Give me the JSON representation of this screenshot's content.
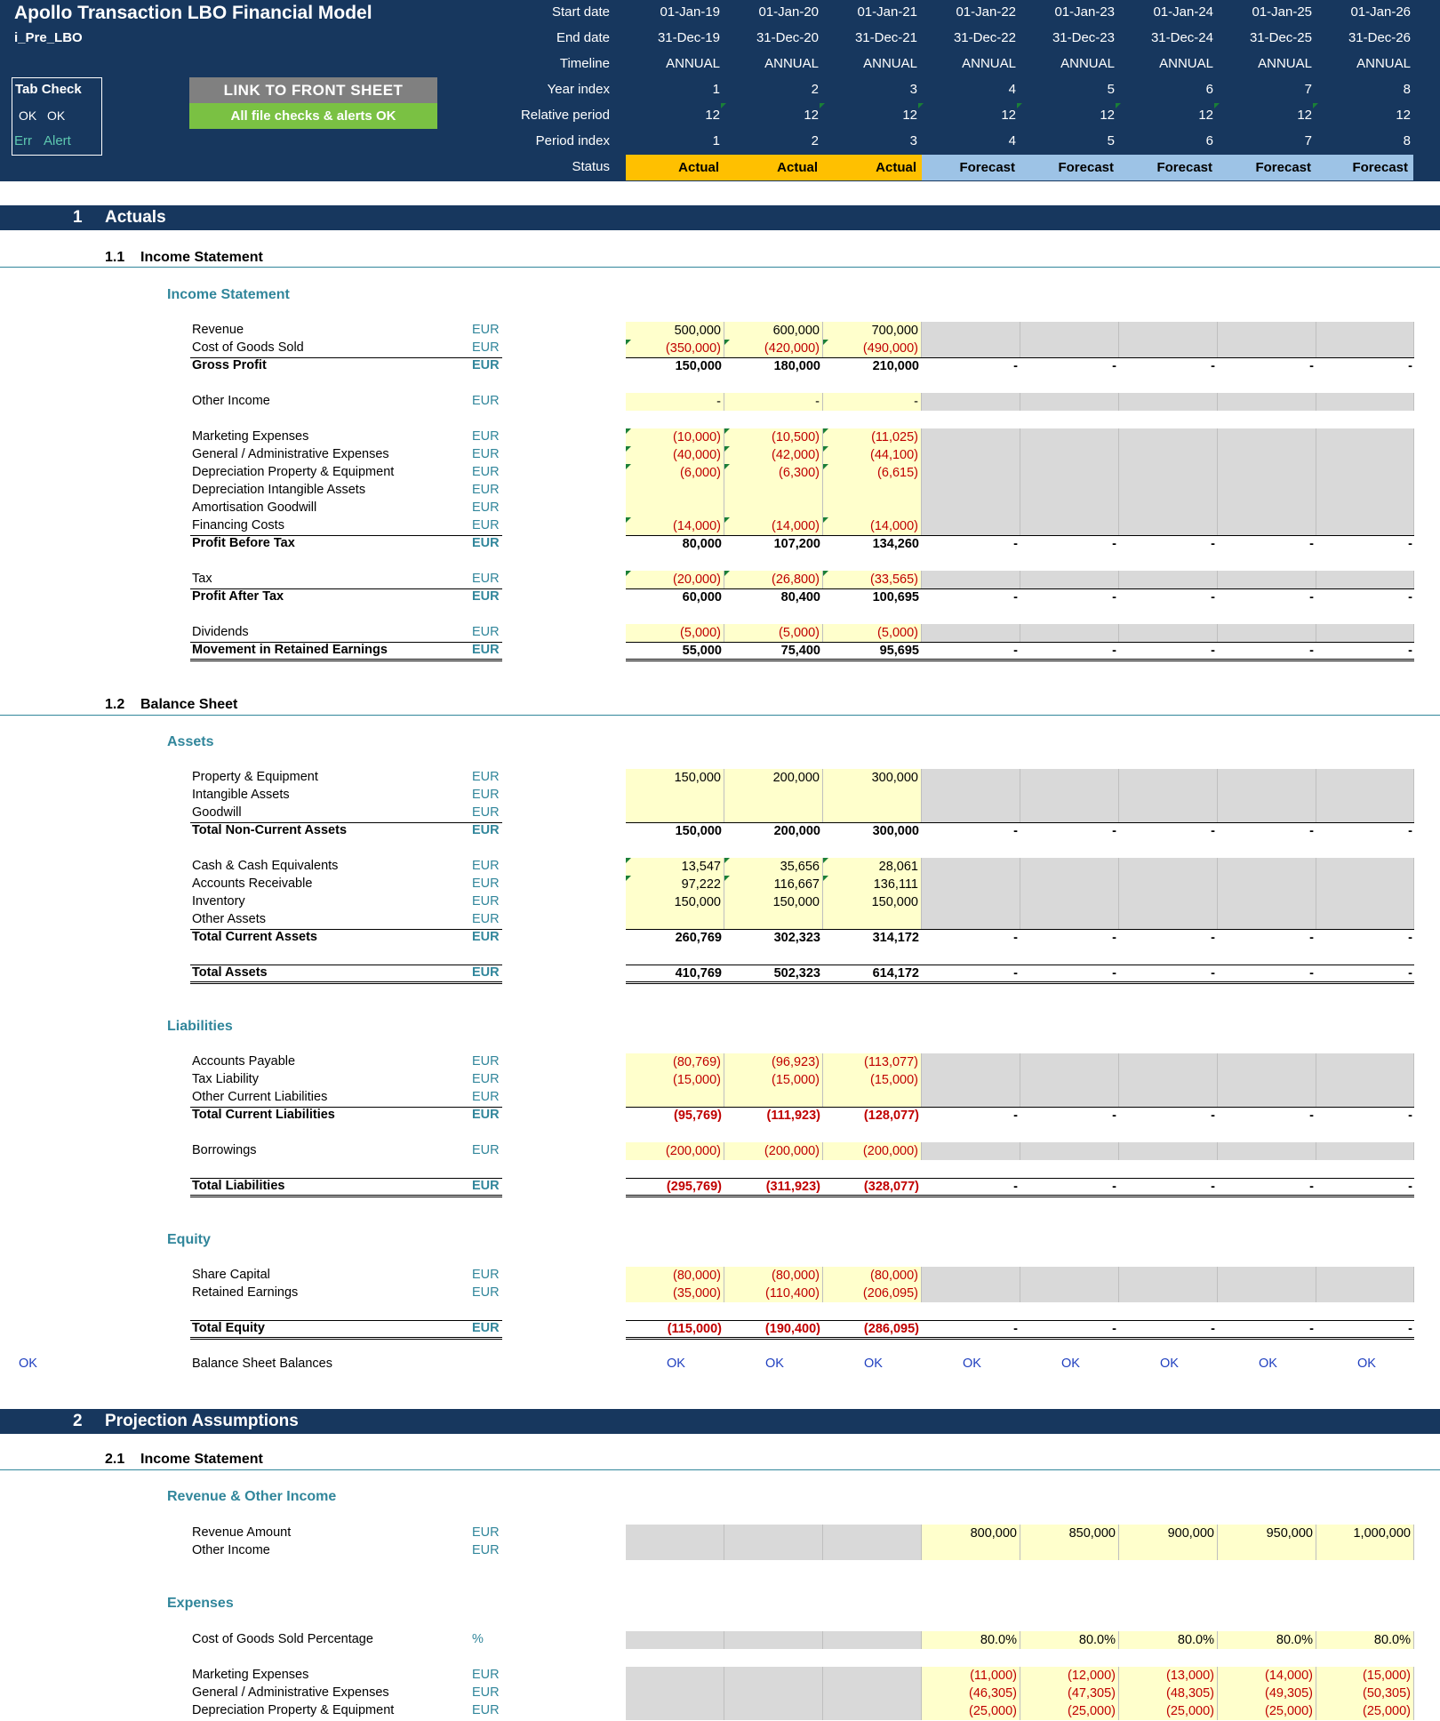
{
  "header": {
    "title": "Apollo Transaction LBO Financial Model",
    "sheet": "i_Pre_LBO",
    "tab_check": {
      "title": "Tab Check",
      "ok1": "OK",
      "ok2": "OK",
      "err": "Err",
      "alert": "Alert"
    },
    "link_button": "LINK TO FRONT SHEET",
    "checks_ok": "All file checks & alerts OK",
    "row_labels": [
      "Start date",
      "End date",
      "Timeline",
      "Year index",
      "Relative period",
      "Period index",
      "Status"
    ],
    "start_dates": [
      "01-Jan-19",
      "01-Jan-20",
      "01-Jan-21",
      "01-Jan-22",
      "01-Jan-23",
      "01-Jan-24",
      "01-Jan-25",
      "01-Jan-26"
    ],
    "end_dates": [
      "31-Dec-19",
      "31-Dec-20",
      "31-Dec-21",
      "31-Dec-22",
      "31-Dec-23",
      "31-Dec-24",
      "31-Dec-25",
      "31-Dec-26"
    ],
    "timeline": [
      "ANNUAL",
      "ANNUAL",
      "ANNUAL",
      "ANNUAL",
      "ANNUAL",
      "ANNUAL",
      "ANNUAL",
      "ANNUAL"
    ],
    "year_index": [
      "1",
      "2",
      "3",
      "4",
      "5",
      "6",
      "7",
      "8"
    ],
    "relative_period": [
      "12",
      "12",
      "12",
      "12",
      "12",
      "12",
      "12",
      "12"
    ],
    "period_index": [
      "1",
      "2",
      "3",
      "4",
      "5",
      "6",
      "7",
      "8"
    ],
    "status": [
      "Actual",
      "Actual",
      "Actual",
      "Forecast",
      "Forecast",
      "Forecast",
      "Forecast",
      "Forecast"
    ],
    "colors": {
      "navy": "#17375e",
      "actual": "#ffc000",
      "forecast": "#9dc3e6",
      "ok_green": "#7ac143"
    }
  },
  "s1": {
    "num": "1",
    "title": "Actuals"
  },
  "s1_1": {
    "num": "1.1",
    "title": "Income Statement",
    "group": "Income Statement"
  },
  "s1_2": {
    "num": "1.2",
    "title": "Balance Sheet",
    "assets": "Assets",
    "liabilities": "Liabilities",
    "equity": "Equity"
  },
  "s2": {
    "num": "2",
    "title": "Projection Assumptions"
  },
  "s2_1": {
    "num": "2.1",
    "title": "Income Statement",
    "rev_group": "Revenue & Other Income",
    "exp_group": "Expenses"
  },
  "check": {
    "left": "OK",
    "label": "Balance Sheet Balances",
    "values": [
      "OK",
      "OK",
      "OK",
      "OK",
      "OK",
      "OK",
      "OK",
      "OK"
    ]
  },
  "rows": [
    {
      "label": "Revenue",
      "unit": "EUR",
      "v": [
        "500,000",
        "600,000",
        "700,000"
      ]
    },
    {
      "label": "Cost of Goods Sold",
      "unit": "EUR",
      "v": [
        "(350,000)",
        "(420,000)",
        "(490,000)"
      ]
    },
    {
      "label": "Gross Profit",
      "unit": "EUR",
      "v": [
        "150,000",
        "180,000",
        "210,000",
        "-",
        "-",
        "-",
        "-",
        "-"
      ]
    },
    {
      "label": "Other Income",
      "unit": "EUR",
      "v": [
        "-",
        "-",
        "-"
      ]
    },
    {
      "label": "Marketing Expenses",
      "unit": "EUR",
      "v": [
        "(10,000)",
        "(10,500)",
        "(11,025)"
      ]
    },
    {
      "label": "General / Administrative Expenses",
      "unit": "EUR",
      "v": [
        "(40,000)",
        "(42,000)",
        "(44,100)"
      ]
    },
    {
      "label": "Depreciation Property & Equipment",
      "unit": "EUR",
      "v": [
        "(6,000)",
        "(6,300)",
        "(6,615)"
      ]
    },
    {
      "label": "Depreciation Intangible Assets",
      "unit": "EUR",
      "v": [
        "",
        "",
        ""
      ]
    },
    {
      "label": "Amortisation Goodwill",
      "unit": "EUR",
      "v": [
        "",
        "",
        ""
      ]
    },
    {
      "label": "Financing Costs",
      "unit": "EUR",
      "v": [
        "(14,000)",
        "(14,000)",
        "(14,000)"
      ]
    },
    {
      "label": "Profit Before Tax",
      "unit": "EUR",
      "v": [
        "80,000",
        "107,200",
        "134,260",
        "-",
        "-",
        "-",
        "-",
        "-"
      ]
    },
    {
      "label": "Tax",
      "unit": "EUR",
      "v": [
        "(20,000)",
        "(26,800)",
        "(33,565)"
      ]
    },
    {
      "label": "Profit After Tax",
      "unit": "EUR",
      "v": [
        "60,000",
        "80,400",
        "100,695",
        "-",
        "-",
        "-",
        "-",
        "-"
      ]
    },
    {
      "label": "Dividends",
      "unit": "EUR",
      "v": [
        "(5,000)",
        "(5,000)",
        "(5,000)"
      ]
    },
    {
      "label": "Movement in Retained Earnings",
      "unit": "EUR",
      "v": [
        "55,000",
        "75,400",
        "95,695",
        "-",
        "-",
        "-",
        "-",
        "-"
      ]
    },
    {
      "label": "Property & Equipment",
      "unit": "EUR",
      "v": [
        "150,000",
        "200,000",
        "300,000"
      ]
    },
    {
      "label": "Intangible Assets",
      "unit": "EUR",
      "v": [
        "",
        "",
        ""
      ]
    },
    {
      "label": "Goodwill",
      "unit": "EUR",
      "v": [
        "",
        "",
        ""
      ]
    },
    {
      "label": "Total Non-Current Assets",
      "unit": "EUR",
      "v": [
        "150,000",
        "200,000",
        "300,000",
        "-",
        "-",
        "-",
        "-",
        "-"
      ]
    },
    {
      "label": "Cash & Cash Equivalents",
      "unit": "EUR",
      "v": [
        "13,547",
        "35,656",
        "28,061"
      ]
    },
    {
      "label": "Accounts Receivable",
      "unit": "EUR",
      "v": [
        "97,222",
        "116,667",
        "136,111"
      ]
    },
    {
      "label": "Inventory",
      "unit": "EUR",
      "v": [
        "150,000",
        "150,000",
        "150,000"
      ]
    },
    {
      "label": "Other Assets",
      "unit": "EUR",
      "v": [
        "",
        "",
        ""
      ]
    },
    {
      "label": "Total Current Assets",
      "unit": "EUR",
      "v": [
        "260,769",
        "302,323",
        "314,172",
        "-",
        "-",
        "-",
        "-",
        "-"
      ]
    },
    {
      "label": "Total Assets",
      "unit": "EUR",
      "v": [
        "410,769",
        "502,323",
        "614,172",
        "-",
        "-",
        "-",
        "-",
        "-"
      ]
    },
    {
      "label": "Accounts Payable",
      "unit": "EUR",
      "v": [
        "(80,769)",
        "(96,923)",
        "(113,077)"
      ]
    },
    {
      "label": "Tax Liability",
      "unit": "EUR",
      "v": [
        "(15,000)",
        "(15,000)",
        "(15,000)"
      ]
    },
    {
      "label": "Other Current Liabilities",
      "unit": "EUR",
      "v": [
        "",
        "",
        ""
      ]
    },
    {
      "label": "Total Current Liabilities",
      "unit": "EUR",
      "v": [
        "(95,769)",
        "(111,923)",
        "(128,077)",
        "-",
        "-",
        "-",
        "-",
        "-"
      ]
    },
    {
      "label": "Borrowings",
      "unit": "EUR",
      "v": [
        "(200,000)",
        "(200,000)",
        "(200,000)"
      ]
    },
    {
      "label": "Total Liabilities",
      "unit": "EUR",
      "v": [
        "(295,769)",
        "(311,923)",
        "(328,077)",
        "-",
        "-",
        "-",
        "-",
        "-"
      ]
    },
    {
      "label": "Share Capital",
      "unit": "EUR",
      "v": [
        "(80,000)",
        "(80,000)",
        "(80,000)"
      ]
    },
    {
      "label": "Retained Earnings",
      "unit": "EUR",
      "v": [
        "(35,000)",
        "(110,400)",
        "(206,095)"
      ]
    },
    {
      "label": "Total Equity",
      "unit": "EUR",
      "v": [
        "(115,000)",
        "(190,400)",
        "(286,095)",
        "-",
        "-",
        "-",
        "-",
        "-"
      ]
    },
    {
      "label": "Revenue Amount",
      "unit": "EUR",
      "v": [
        "",
        "",
        "",
        "800,000",
        "850,000",
        "900,000",
        "950,000",
        "1,000,000"
      ]
    },
    {
      "label": "Other Income",
      "unit": "EUR",
      "v": [
        "",
        "",
        "",
        "",
        "",
        "",
        "",
        ""
      ]
    },
    {
      "label": "Cost of Goods Sold Percentage",
      "unit": "%",
      "v": [
        "",
        "",
        "",
        "80.0%",
        "80.0%",
        "80.0%",
        "80.0%",
        "80.0%"
      ]
    },
    {
      "label": "Marketing Expenses",
      "unit": "EUR",
      "v": [
        "",
        "",
        "",
        "(11,000)",
        "(12,000)",
        "(13,000)",
        "(14,000)",
        "(15,000)"
      ]
    },
    {
      "label": "General / Administrative Expenses",
      "unit": "EUR",
      "v": [
        "",
        "",
        "",
        "(46,305)",
        "(47,305)",
        "(48,305)",
        "(49,305)",
        "(50,305)"
      ]
    },
    {
      "label": "Depreciation Property & Equipment",
      "unit": "EUR",
      "v": [
        "",
        "",
        "",
        "(25,000)",
        "(25,000)",
        "(25,000)",
        "(25,000)",
        "(25,000)"
      ]
    }
  ]
}
